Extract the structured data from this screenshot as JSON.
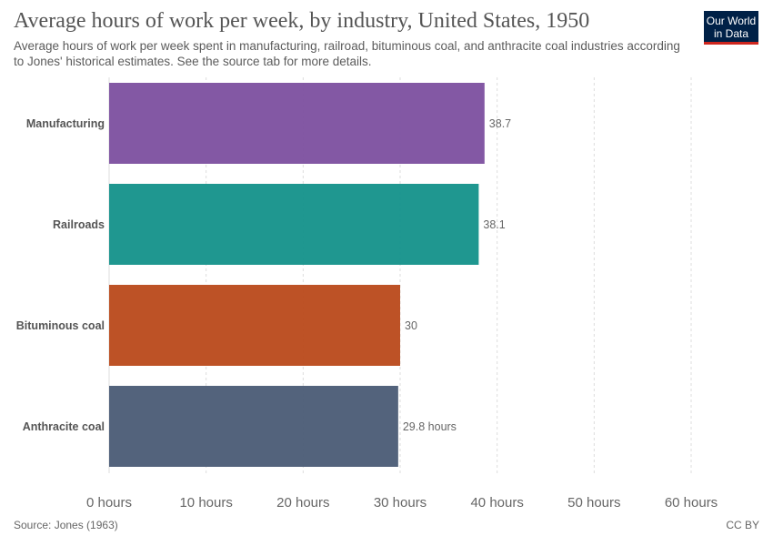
{
  "header": {
    "title": "Average hours of work per week, by industry, United States, 1950",
    "subtitle": "Average hours of work per week spent in manufacturing, railroad, bituminous coal, and anthracite coal industries according to Jones' historical estimates. See the source tab for more details.",
    "logo_line1": "Our World",
    "logo_line2": "in Data",
    "logo_bg": "#002147",
    "logo_accent": "#ce261e"
  },
  "footer": {
    "source": "Source: Jones (1963)",
    "license": "CC BY"
  },
  "chart_data": {
    "type": "bar",
    "orientation": "horizontal",
    "categories": [
      "Manufacturing",
      "Railroads",
      "Bituminous coal",
      "Anthracite coal"
    ],
    "values": [
      38.7,
      38.1,
      30,
      29.8
    ],
    "value_labels": [
      "38.7",
      "38.1",
      "30",
      "29.8 hours"
    ],
    "colors": [
      "#7c4f9f",
      "#13918a",
      "#b9491a",
      "#4a5b75"
    ],
    "x_ticks": [
      0,
      10,
      20,
      30,
      40,
      50,
      60
    ],
    "x_tick_labels": [
      "0 hours",
      "10 hours",
      "20 hours",
      "30 hours",
      "40 hours",
      "50 hours",
      "60 hours"
    ],
    "xlim": [
      0,
      60
    ],
    "grid": "vertical-dashed"
  }
}
